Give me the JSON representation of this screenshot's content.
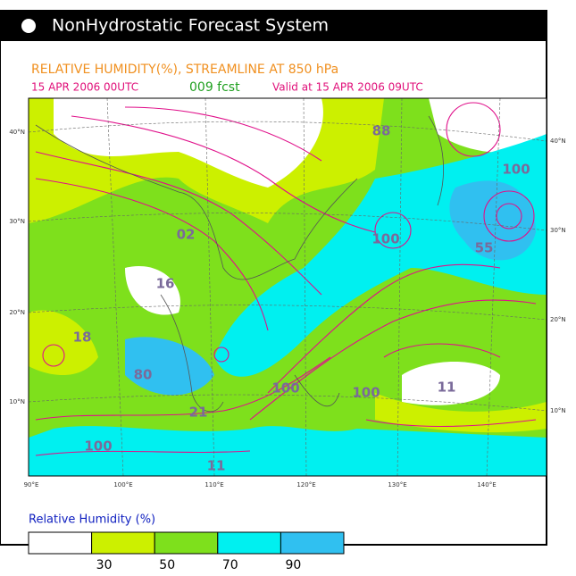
{
  "header": {
    "title": "NonHydrostatic Forecast System"
  },
  "titles": {
    "field": "RELATIVE HUMIDITY(%), STREAMLINE AT 850 hPa",
    "init": "15 APR 2006 00UTC",
    "forecast": "009 fcst",
    "valid": "Valid at 15 APR 2006 09UTC"
  },
  "map": {
    "lat_labels_left": [
      "40°N",
      "30°N",
      "20°N",
      "10°N"
    ],
    "lat_labels_right": [
      "40°N",
      "30°N",
      "20°N",
      "10°N"
    ],
    "lon_labels": [
      "90°E",
      "100°E",
      "110°E",
      "120°E",
      "130°E",
      "140°E"
    ],
    "labels": [
      "88",
      "100",
      "100",
      "55",
      "02",
      "16",
      "18",
      "80",
      "100",
      "100",
      "11",
      "21",
      "100",
      "11"
    ]
  },
  "legend": {
    "title": "Relative Humidity (%)",
    "ticks": [
      "30",
      "50",
      "70",
      "90"
    ],
    "colors": [
      "#ffffff",
      "#ccf000",
      "#7ee01c",
      "#00f0f0",
      "#30c0f0"
    ]
  }
}
